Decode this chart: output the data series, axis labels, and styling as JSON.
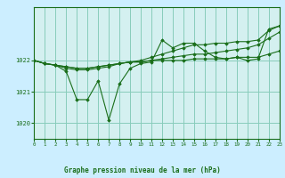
{
  "background_color": "#cceeff",
  "plot_bg_color": "#d4f0f0",
  "grid_color": "#88ccbb",
  "line_color": "#1a6e1a",
  "title": "Graphe pression niveau de la mer (hPa)",
  "xlim": [
    0,
    23
  ],
  "ylim": [
    1019.5,
    1023.7
  ],
  "yticks": [
    1020,
    1021,
    1022
  ],
  "xticks": [
    0,
    1,
    2,
    3,
    4,
    5,
    6,
    7,
    8,
    9,
    10,
    11,
    12,
    13,
    14,
    15,
    16,
    17,
    18,
    19,
    20,
    21,
    22,
    23
  ],
  "series": [
    {
      "x": [
        0,
        1,
        2,
        3,
        4,
        5,
        6,
        7,
        8,
        9,
        10,
        11,
        12,
        13,
        14,
        15,
        16,
        17,
        18,
        19,
        20,
        21,
        22,
        23
      ],
      "y": [
        1022.0,
        1021.9,
        1021.85,
        1021.8,
        1021.75,
        1021.75,
        1021.8,
        1021.85,
        1021.9,
        1021.95,
        1021.95,
        1022.0,
        1022.0,
        1022.0,
        1022.0,
        1022.05,
        1022.05,
        1022.05,
        1022.05,
        1022.1,
        1022.1,
        1022.1,
        1022.2,
        1022.3
      ]
    },
    {
      "x": [
        0,
        1,
        2,
        3,
        4,
        5,
        6,
        7,
        8,
        9,
        10,
        11,
        12,
        13,
        14,
        15,
        16,
        17,
        18,
        19,
        20,
        21,
        22,
        23
      ],
      "y": [
        1022.0,
        1021.9,
        1021.85,
        1021.8,
        1021.75,
        1021.75,
        1021.8,
        1021.85,
        1021.9,
        1021.95,
        1021.95,
        1022.0,
        1022.05,
        1022.1,
        1022.15,
        1022.2,
        1022.2,
        1022.25,
        1022.3,
        1022.35,
        1022.4,
        1022.5,
        1022.7,
        1022.9
      ]
    },
    {
      "x": [
        0,
        1,
        2,
        3,
        4,
        5,
        6,
        7,
        8,
        9,
        10,
        11,
        12,
        13,
        14,
        15,
        16,
        17,
        18,
        19,
        20,
        21,
        22,
        23
      ],
      "y": [
        1022.0,
        1021.9,
        1021.85,
        1021.75,
        1021.7,
        1021.7,
        1021.75,
        1021.8,
        1021.9,
        1021.95,
        1022.0,
        1022.1,
        1022.2,
        1022.3,
        1022.4,
        1022.5,
        1022.5,
        1022.55,
        1022.55,
        1022.6,
        1022.6,
        1022.65,
        1022.95,
        1023.1
      ]
    },
    {
      "x": [
        0,
        1,
        2,
        3,
        4,
        5,
        6,
        7,
        8,
        9,
        10,
        11,
        12,
        13,
        14,
        15,
        16,
        17,
        18,
        19,
        20,
        21,
        22,
        23
      ],
      "y": [
        1022.0,
        1021.9,
        1021.85,
        1021.65,
        1020.75,
        1020.75,
        1021.35,
        1020.1,
        1021.25,
        1021.75,
        1021.9,
        1021.95,
        1022.65,
        1022.4,
        1022.55,
        1022.55,
        1022.3,
        1022.1,
        1022.05,
        1022.1,
        1022.0,
        1022.05,
        1023.0,
        1023.1
      ]
    }
  ]
}
